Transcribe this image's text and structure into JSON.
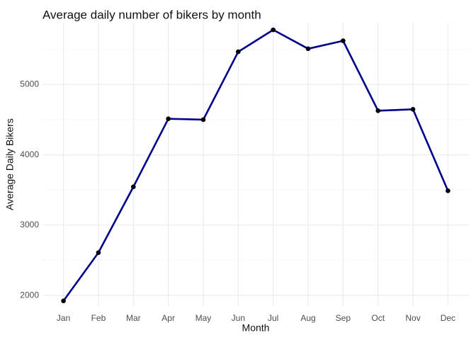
{
  "chart_data": {
    "type": "line",
    "title": "Average daily number of bikers by month",
    "xlabel": "Month",
    "ylabel": "Average Daily Bikers",
    "categories": [
      "Jan",
      "Feb",
      "Mar",
      "Apr",
      "May",
      "Jun",
      "Jul",
      "Aug",
      "Sep",
      "Oct",
      "Nov",
      "Dec"
    ],
    "series": [
      {
        "values": [
          1923,
          2609,
          3545,
          4513,
          4500,
          5466,
          5778,
          5509,
          5622,
          4628,
          4648,
          3489
        ]
      }
    ],
    "ylim": [
      1850,
      5880
    ],
    "yticks": [
      2000,
      3000,
      4000,
      5000
    ],
    "grid": true,
    "legend": "none",
    "colors": {
      "line": "#00008b",
      "point": "#000000",
      "grid_major": "#ebebeb",
      "grid_minor": "#f5f5f5",
      "background": "#ffffff"
    }
  }
}
